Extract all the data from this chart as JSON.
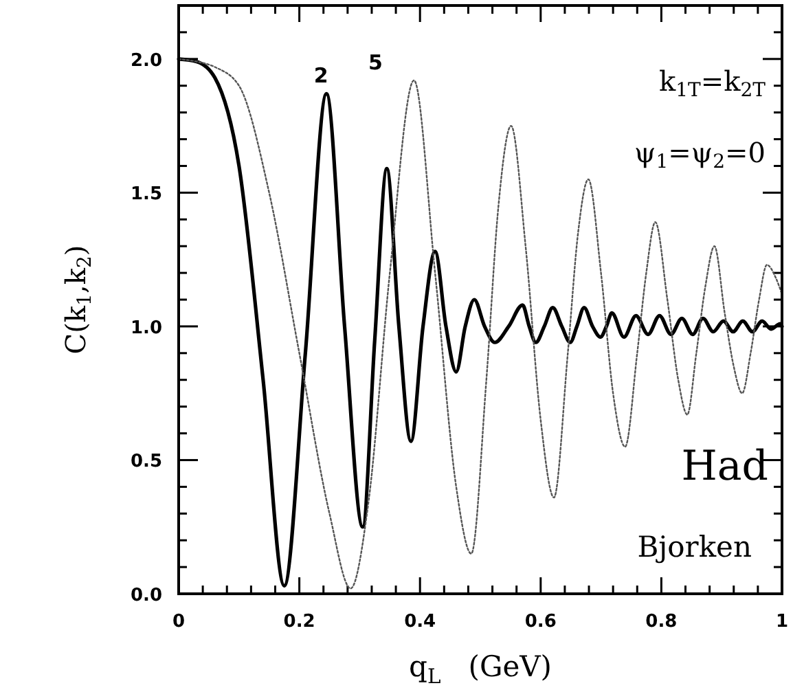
{
  "chart_data": {
    "type": "line",
    "xlabel": "q$_{L}$   (GeV)",
    "ylabel": "C(k$_{1}$,k$_{2}$)",
    "xlim": [
      0,
      1
    ],
    "ylim": [
      0,
      2.2
    ],
    "xticks": [
      0,
      {
        "value": 0.04,
        "label": null
      },
      {
        "value": 0.08,
        "label": null
      },
      {
        "value": 0.12,
        "label": null
      },
      {
        "value": 0.16,
        "label": null
      },
      0.2,
      {
        "value": 0.24,
        "label": null
      },
      {
        "value": 0.28,
        "label": null
      },
      {
        "value": 0.32,
        "label": null
      },
      {
        "value": 0.36,
        "label": null
      },
      0.4,
      {
        "value": 0.44,
        "label": null
      },
      {
        "value": 0.48,
        "label": null
      },
      {
        "value": 0.52,
        "label": null
      },
      {
        "value": 0.56,
        "label": null
      },
      0.6,
      {
        "value": 0.64,
        "label": null
      },
      {
        "value": 0.68,
        "label": null
      },
      {
        "value": 0.72,
        "label": null
      },
      {
        "value": 0.76,
        "label": null
      },
      0.8,
      {
        "value": 0.84,
        "label": null
      },
      {
        "value": 0.88,
        "label": null
      },
      {
        "value": 0.92,
        "label": null
      },
      {
        "value": 0.96,
        "label": null
      },
      1
    ],
    "yticks": [
      {
        "value": 0,
        "label": "0.0"
      },
      {
        "value": 0.1,
        "label": null
      },
      {
        "value": 0.2,
        "label": null
      },
      {
        "value": 0.3,
        "label": null
      },
      {
        "value": 0.4,
        "label": null
      },
      0.5,
      {
        "value": 0.6,
        "label": null
      },
      {
        "value": 0.7,
        "label": null
      },
      {
        "value": 0.8,
        "label": null
      },
      {
        "value": 0.9,
        "label": null
      },
      {
        "value": 1,
        "label": "1.0"
      },
      {
        "value": 1.1,
        "label": null
      },
      {
        "value": 1.2,
        "label": null
      },
      {
        "value": 1.3,
        "label": null
      },
      {
        "value": 1.4,
        "label": null
      },
      1.5,
      {
        "value": 1.6,
        "label": null
      },
      {
        "value": 1.7,
        "label": null
      },
      {
        "value": 1.8,
        "label": null
      },
      {
        "value": 1.9,
        "label": null
      },
      {
        "value": 2,
        "label": "2.0"
      },
      {
        "value": 2.1,
        "label": null
      }
    ],
    "grid": false,
    "series": [
      {
        "name": "2",
        "color": "#000000",
        "line_style": "solid",
        "x": [
          0,
          0.03,
          0.06,
          0.1,
          0.14,
          0.175,
          0.21,
          0.245,
          0.275,
          0.305,
          0.325,
          0.345,
          0.365,
          0.385,
          0.405,
          0.425,
          0.443,
          0.46,
          0.475,
          0.49,
          0.507,
          0.524,
          0.547,
          0.57,
          0.581,
          0.592,
          0.606,
          0.62,
          0.635,
          0.649,
          0.66,
          0.672,
          0.686,
          0.699,
          0.709,
          0.718,
          0.738,
          0.758,
          0.778,
          0.797,
          0.816,
          0.834,
          0.852,
          0.869,
          0.886,
          0.903,
          0.919,
          0.935,
          0.951,
          0.967,
          0.982,
          0.997,
          1
        ],
        "values": [
          2.0,
          1.99,
          1.93,
          1.6,
          0.8,
          0.03,
          0.9,
          1.87,
          1.0,
          0.25,
          0.95,
          1.59,
          1.0,
          0.57,
          1.0,
          1.28,
          1.0,
          0.83,
          1.0,
          1.1,
          1.0,
          0.94,
          1.0,
          1.08,
          1.0,
          0.94,
          1.0,
          1.07,
          1.0,
          0.94,
          1.0,
          1.07,
          1.0,
          0.96,
          1.0,
          1.05,
          0.96,
          1.04,
          0.97,
          1.04,
          0.97,
          1.03,
          0.97,
          1.03,
          0.98,
          1.02,
          0.98,
          1.02,
          0.98,
          1.02,
          0.99,
          1.01,
          1.0
        ]
      },
      {
        "name": "5",
        "color": "#555555",
        "line_style": "dotted",
        "x": [
          0,
          0.03,
          0.06,
          0.1,
          0.15,
          0.2,
          0.25,
          0.285,
          0.315,
          0.35,
          0.39,
          0.425,
          0.46,
          0.485,
          0.51,
          0.53,
          0.551,
          0.575,
          0.6,
          0.622,
          0.645,
          0.662,
          0.679,
          0.7,
          0.72,
          0.74,
          0.76,
          0.775,
          0.79,
          0.81,
          0.828,
          0.843,
          0.858,
          0.873,
          0.888,
          0.905,
          0.92,
          0.934,
          0.948,
          0.962,
          0.975,
          0.99,
          1
        ],
        "values": [
          2.0,
          1.99,
          1.97,
          1.9,
          1.5,
          0.9,
          0.3,
          0.02,
          0.35,
          1.2,
          1.92,
          1.2,
          0.4,
          0.15,
          0.8,
          1.45,
          1.75,
          1.3,
          0.65,
          0.36,
          0.9,
          1.35,
          1.55,
          1.2,
          0.75,
          0.55,
          0.9,
          1.2,
          1.39,
          1.1,
          0.8,
          0.67,
          0.9,
          1.15,
          1.3,
          1.05,
          0.85,
          0.75,
          0.9,
          1.1,
          1.23,
          1.18,
          1.12
        ]
      }
    ],
    "annotations": [
      "k$_{1T}$=k$_{2T}$",
      "ψ$_{1}$=ψ$_{2}$=0",
      "Had",
      "Bjorken"
    ]
  }
}
